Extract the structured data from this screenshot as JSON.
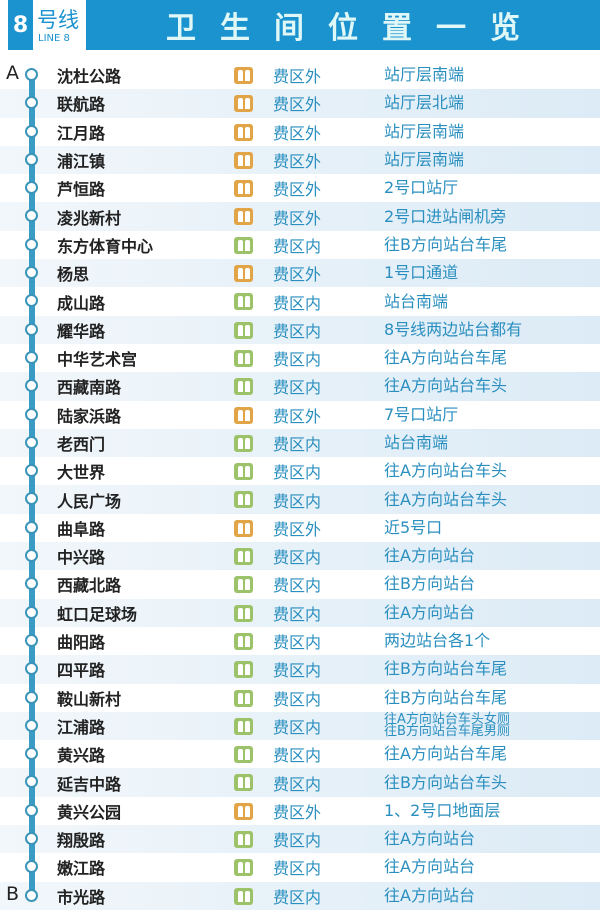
{
  "header": {
    "line_number": "8",
    "line_cn": "号线",
    "line_en": "LINE 8",
    "title": "卫生间位置一览"
  },
  "ends": {
    "start": "A",
    "end": "B"
  },
  "colors": {
    "brand": "#1b93cf",
    "outside": "#e1a446",
    "inside": "#9dc36a"
  },
  "stations": [
    {
      "name": "沈杜公路",
      "zone": "费区外",
      "type": "out",
      "location": "站厅层南端"
    },
    {
      "name": "联航路",
      "zone": "费区外",
      "type": "out",
      "location": "站厅层北端"
    },
    {
      "name": "江月路",
      "zone": "费区外",
      "type": "out",
      "location": "站厅层南端"
    },
    {
      "name": "浦江镇",
      "zone": "费区外",
      "type": "out",
      "location": "站厅层南端"
    },
    {
      "name": "芦恒路",
      "zone": "费区外",
      "type": "out",
      "location": "2号口站厅"
    },
    {
      "name": "凌兆新村",
      "zone": "费区外",
      "type": "out",
      "location": "2号口进站闸机旁"
    },
    {
      "name": "东方体育中心",
      "zone": "费区内",
      "type": "in",
      "location": "往B方向站台车尾"
    },
    {
      "name": "杨思",
      "zone": "费区外",
      "type": "out",
      "location": "1号口通道"
    },
    {
      "name": "成山路",
      "zone": "费区内",
      "type": "in",
      "location": "站台南端"
    },
    {
      "name": "耀华路",
      "zone": "费区内",
      "type": "in",
      "location": "8号线两边站台都有"
    },
    {
      "name": "中华艺术宫",
      "zone": "费区内",
      "type": "in",
      "location": "往A方向站台车尾"
    },
    {
      "name": "西藏南路",
      "zone": "费区内",
      "type": "in",
      "location": "往A方向站台车头"
    },
    {
      "name": "陆家浜路",
      "zone": "费区外",
      "type": "out",
      "location": "7号口站厅"
    },
    {
      "name": "老西门",
      "zone": "费区内",
      "type": "in",
      "location": "站台南端"
    },
    {
      "name": "大世界",
      "zone": "费区内",
      "type": "in",
      "location": "往A方向站台车头"
    },
    {
      "name": "人民广场",
      "zone": "费区内",
      "type": "in",
      "location": "往A方向站台车头"
    },
    {
      "name": "曲阜路",
      "zone": "费区外",
      "type": "out",
      "location": "近5号口"
    },
    {
      "name": "中兴路",
      "zone": "费区内",
      "type": "in",
      "location": "往A方向站台"
    },
    {
      "name": "西藏北路",
      "zone": "费区内",
      "type": "in",
      "location": "往B方向站台"
    },
    {
      "name": "虹口足球场",
      "zone": "费区内",
      "type": "in",
      "location": "往A方向站台"
    },
    {
      "name": "曲阳路",
      "zone": "费区内",
      "type": "in",
      "location": "两边站台各1个"
    },
    {
      "name": "四平路",
      "zone": "费区内",
      "type": "in",
      "location": "往B方向站台车尾"
    },
    {
      "name": "鞍山新村",
      "zone": "费区内",
      "type": "in",
      "location": "往B方向站台车尾"
    },
    {
      "name": "江浦路",
      "zone": "费区内",
      "type": "in",
      "location": "往A方向站台车头女厕",
      "location2": "往B方向站台车尾男厕"
    },
    {
      "name": "黄兴路",
      "zone": "费区内",
      "type": "in",
      "location": "往A方向站台车尾"
    },
    {
      "name": "延吉中路",
      "zone": "费区内",
      "type": "in",
      "location": "往B方向站台车头"
    },
    {
      "name": "黄兴公园",
      "zone": "费区外",
      "type": "out",
      "location": "1、2号口地面层"
    },
    {
      "name": "翔殷路",
      "zone": "费区内",
      "type": "in",
      "location": "往A方向站台"
    },
    {
      "name": "嫩江路",
      "zone": "费区内",
      "type": "in",
      "location": "往A方向站台"
    },
    {
      "name": "市光路",
      "zone": "费区内",
      "type": "in",
      "location": "往A方向站台"
    }
  ]
}
